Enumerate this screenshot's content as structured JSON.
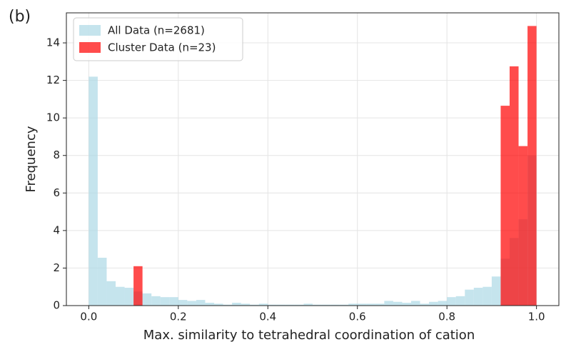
{
  "chart_data": {
    "type": "histogram",
    "panel_label": "(b)",
    "xlabel": "Max. similarity to tetrahedral coordination of cation",
    "ylabel": "Frequency",
    "bins": [
      0,
      0.02,
      0.04,
      0.06,
      0.08,
      0.1,
      0.12,
      0.14,
      0.16,
      0.18,
      0.2,
      0.22,
      0.24,
      0.26,
      0.28,
      0.3,
      0.32,
      0.34,
      0.36,
      0.38,
      0.4,
      0.42,
      0.44,
      0.46,
      0.48,
      0.5,
      0.52,
      0.54,
      0.56,
      0.58,
      0.6,
      0.62,
      0.64,
      0.66,
      0.68,
      0.7,
      0.72,
      0.74,
      0.76,
      0.78,
      0.8,
      0.82,
      0.84,
      0.86,
      0.88,
      0.9,
      0.92,
      0.94,
      0.96,
      0.98,
      1
    ],
    "series": [
      {
        "name": "All Data (n=2681)",
        "color": "#add8e6",
        "values": [
          12.2,
          2.55,
          1.3,
          1.0,
          0.95,
          0.75,
          0.65,
          0.5,
          0.45,
          0.45,
          0.3,
          0.25,
          0.3,
          0.15,
          0.1,
          0.05,
          0.15,
          0.1,
          0.05,
          0.1,
          0.05,
          0.05,
          0.05,
          0.05,
          0.1,
          0.05,
          0.05,
          0.05,
          0.05,
          0.1,
          0.1,
          0.1,
          0.1,
          0.25,
          0.2,
          0.15,
          0.25,
          0.1,
          0.2,
          0.25,
          0.45,
          0.5,
          0.85,
          0.95,
          1.0,
          1.55,
          2.5,
          3.6,
          4.6,
          8.0
        ]
      },
      {
        "name": "Cluster Data (n=23)",
        "color": "#ff0000",
        "values": [
          0,
          0,
          0,
          0,
          0,
          2.1,
          0,
          0,
          0,
          0,
          0,
          0,
          0,
          0,
          0,
          0,
          0,
          0,
          0,
          0,
          0,
          0,
          0,
          0,
          0,
          0,
          0,
          0,
          0,
          0,
          0,
          0,
          0,
          0,
          0,
          0,
          0,
          0,
          0,
          0,
          0,
          0,
          0,
          0,
          0,
          0,
          10.65,
          12.75,
          8.5,
          14.9
        ]
      }
    ],
    "xlim": [
      -0.05,
      1.05
    ],
    "ylim": [
      0,
      15.6
    ],
    "xticks": [
      {
        "value": 0,
        "label": "0.0"
      },
      {
        "value": 0.2,
        "label": "0.2"
      },
      {
        "value": 0.4,
        "label": "0.4"
      },
      {
        "value": 0.6,
        "label": "0.6"
      },
      {
        "value": 0.8,
        "label": "0.8"
      },
      {
        "value": 1,
        "label": "1.0"
      }
    ],
    "yticks": [
      0,
      2,
      4,
      6,
      8,
      10,
      12,
      14
    ],
    "grid": true,
    "legend": "upper-left"
  }
}
